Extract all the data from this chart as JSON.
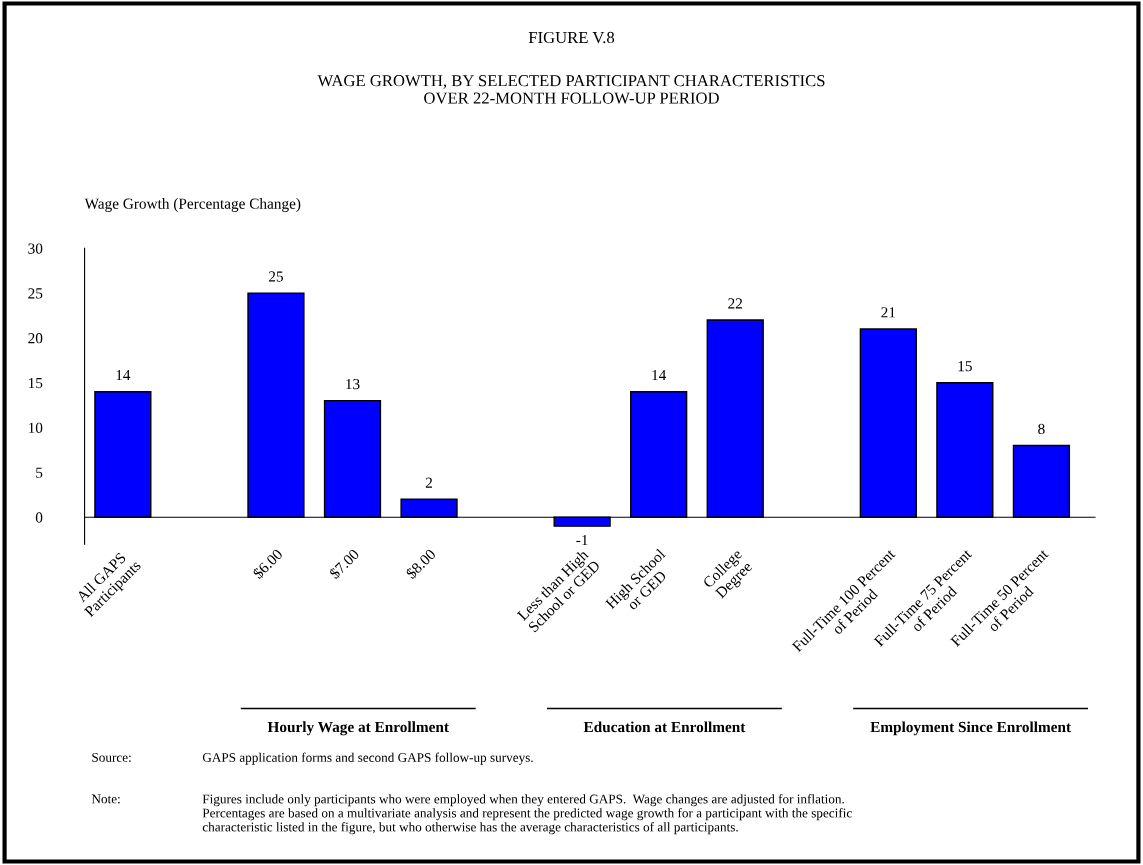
{
  "chart_data": {
    "type": "bar",
    "title": "FIGURE V.8",
    "subtitle": "WAGE GROWTH, BY SELECTED PARTICIPANT CHARACTERISTICS\nOVER 22-MONTH FOLLOW-UP PERIOD",
    "ylabel": "Wage Growth (Percentage Change)",
    "categories": [
      "All GAPS\nParticipants",
      null,
      "$6.00",
      "$7.00",
      "$8.00",
      null,
      "Less than High\nSchool or GED",
      "High School\nor GED",
      "College\nDegree",
      null,
      "Full-Time 100 Percent\nof Period",
      "Full-Time 75 Percent\nof Period",
      "Full-Time 50 Percent\nof Period"
    ],
    "values": [
      14,
      null,
      25,
      13,
      2,
      null,
      -1,
      14,
      22,
      null,
      21,
      15,
      8
    ],
    "color": "#0000ff",
    "data_labels": true,
    "ylim": [
      -3,
      30
    ],
    "yticks": [
      0,
      5,
      10,
      15,
      20,
      25,
      30
    ],
    "grid": false,
    "legend": false,
    "annotations": [
      "Hourly Wage at Enrollment",
      "Education at Enrollment",
      "Employment Since Enrollment",
      "Source:\tGAPS application forms and second GAPS follow-up surveys.",
      "Note:\tFigures include only participants who were employed when they entered GAPS.  Wage changes are adjusted for inflation.\nPercentages are based on a multivariate analysis and represent the predicted wage growth for a participant with the specific\ncharacteristic listed in the figure, but who otherwise has the average characteristics of all participants."
    ]
  }
}
